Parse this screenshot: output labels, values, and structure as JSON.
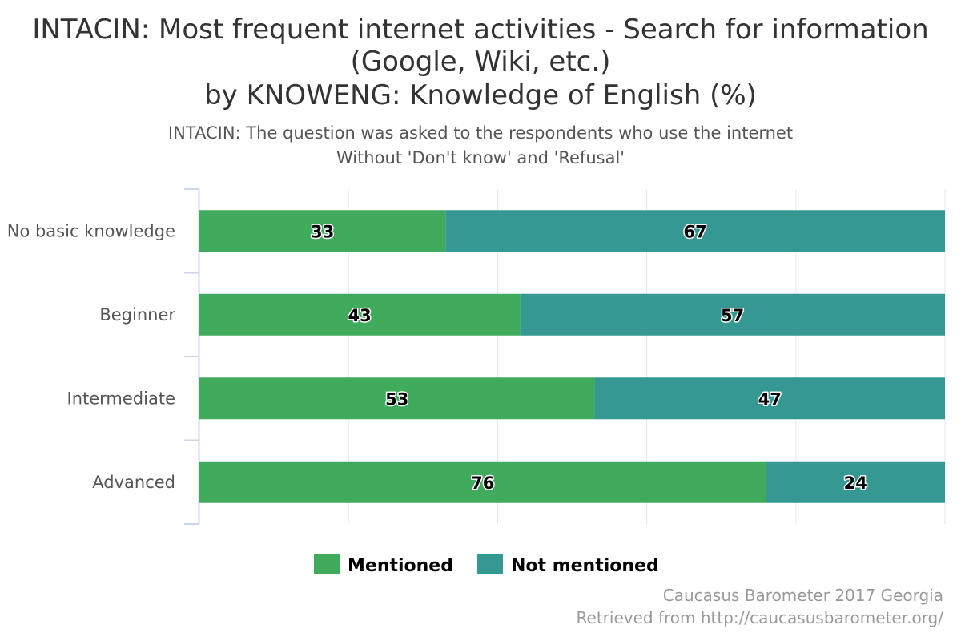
{
  "chart_data": {
    "type": "bar",
    "orientation": "horizontal",
    "stacked": true,
    "title_lines": [
      "INTACIN: Most frequent internet activities - Search for information",
      "(Google, Wiki, etc.)",
      "by KNOWENG: Knowledge of English (%)"
    ],
    "subtitle_lines": [
      "INTACIN: The question was asked to the respondents who use the internet",
      "Without 'Don't know' and 'Refusal'"
    ],
    "categories": [
      "No basic knowledge",
      "Beginner",
      "Intermediate",
      "Advanced"
    ],
    "series": [
      {
        "name": "Mentioned",
        "color": "#41ab5d",
        "values": [
          33,
          43,
          53,
          76
        ]
      },
      {
        "name": "Not mentioned",
        "color": "#359892",
        "values": [
          67,
          57,
          47,
          24
        ]
      }
    ],
    "xlim": [
      0,
      100
    ],
    "grid": true,
    "legend": "bottom-center",
    "credits": [
      "Caucasus Barometer 2017 Georgia",
      "Retrieved from http://caucasusbarometer.org/"
    ]
  }
}
